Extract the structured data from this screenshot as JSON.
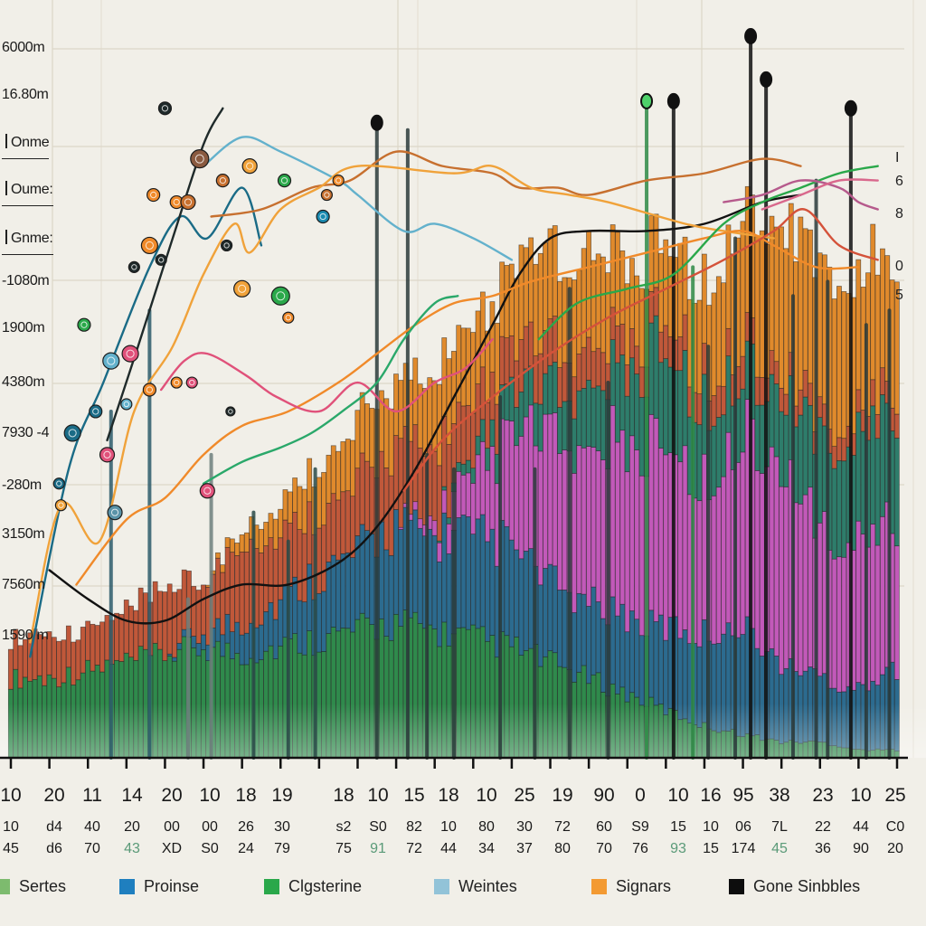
{
  "chart_data": {
    "type": "bar",
    "title": "",
    "xlabel": "",
    "ylabel": "",
    "grid": true,
    "legend_position": "bottom",
    "y_tick_labels": [
      "6000m",
      "16.80m",
      "Onme",
      "Oume:",
      "Gnme:",
      "-1080m",
      "1900m",
      "4380m",
      "7930 -4",
      "-280m",
      "3150m",
      "7560m",
      "1590 m"
    ],
    "x_tick_labels_row1": [
      "10",
      "20",
      "11",
      "14",
      "20",
      "10",
      "18",
      "19",
      "18",
      "10",
      "15",
      "18",
      "10",
      "25",
      "19",
      "90",
      "0",
      "10",
      "16",
      "95",
      "38",
      "23",
      "10",
      "25"
    ],
    "x_tick_labels_row2": [
      "10",
      "d4",
      "40",
      "20",
      "00",
      "00",
      "26",
      "30",
      "s2",
      "S0",
      "82",
      "10",
      "80",
      "30",
      "72",
      "60",
      "S9",
      "15",
      "10",
      "06",
      "7L",
      "22",
      "44",
      "C0"
    ],
    "x_tick_labels_row3": [
      "45",
      "d6",
      "70",
      "43",
      "XD",
      "S0",
      "24",
      "79",
      "75",
      "91",
      "72",
      "44",
      "34",
      "37",
      "80",
      "70",
      "76",
      "93",
      "15",
      "174",
      "45",
      "36",
      "90",
      "20"
    ],
    "right_end_labels": [
      "I",
      "6",
      "8",
      "0",
      "5"
    ],
    "legend": [
      {
        "label": "Sertes",
        "color": "#7dbb6e"
      },
      {
        "label": "Proinse",
        "color": "#1f7fbf"
      },
      {
        "label": "Clgsterine",
        "color": "#2aa84a"
      },
      {
        "label": "Weintes",
        "color": "#92c3d8"
      },
      {
        "label": "Signars",
        "color": "#f39a32"
      },
      {
        "label": "Gone Sinbbles",
        "color": "#0d0d0d"
      }
    ],
    "ylim": [
      0,
      100
    ],
    "stacked_area_layers": [
      {
        "name": "green-base",
        "color": "#2f8a4c",
        "values": [
          10,
          10,
          11,
          12,
          13,
          14,
          13,
          14,
          15,
          16,
          17,
          16,
          15,
          14,
          12,
          10,
          8,
          6,
          4,
          3,
          2,
          2,
          1,
          1
        ]
      },
      {
        "name": "blue",
        "color": "#2c6b8f",
        "values": [
          0,
          0,
          0,
          0,
          0,
          2,
          4,
          6,
          8,
          10,
          12,
          12,
          13,
          13,
          10,
          10,
          10,
          10,
          12,
          14,
          10,
          8,
          8,
          10
        ]
      },
      {
        "name": "magenta",
        "color": "#c259b9",
        "values": [
          0,
          0,
          0,
          0,
          0,
          0,
          0,
          0,
          0,
          0,
          0,
          2,
          7,
          14,
          18,
          20,
          22,
          24,
          20,
          24,
          26,
          18,
          20,
          18
        ]
      },
      {
        "name": "teal",
        "color": "#2e7d6b",
        "values": [
          0,
          0,
          0,
          0,
          0,
          0,
          0,
          0,
          0,
          0,
          0,
          0,
          2,
          5,
          6,
          8,
          10,
          12,
          10,
          8,
          10,
          12,
          14,
          14
        ]
      },
      {
        "name": "rust",
        "color": "#c0583a",
        "values": [
          5,
          6,
          5,
          7,
          8,
          7,
          10,
          9,
          8,
          9,
          10,
          10,
          7,
          6,
          6,
          5,
          4,
          4,
          4,
          4,
          3,
          3,
          3,
          3
        ]
      },
      {
        "name": "orange",
        "color": "#e08a2c",
        "values": [
          0,
          0,
          0,
          0,
          0,
          0,
          2,
          4,
          6,
          8,
          8,
          10,
          10,
          10,
          12,
          12,
          10,
          10,
          12,
          16,
          20,
          20,
          18,
          16
        ]
      }
    ],
    "spikes": [
      {
        "x": 2.6,
        "top": 48,
        "color": "#2b5a6a"
      },
      {
        "x": 3.6,
        "top": 62,
        "color": "#2b5a6a"
      },
      {
        "x": 4.6,
        "top": 22,
        "color": "#6d7f7d"
      },
      {
        "x": 5.2,
        "top": 42,
        "color": "#6d7f7d"
      },
      {
        "x": 6.3,
        "top": 34,
        "color": "#2a4a48"
      },
      {
        "x": 7.2,
        "top": 30,
        "color": "#2a4a48"
      },
      {
        "x": 7.9,
        "top": 40,
        "color": "#2a4a48"
      },
      {
        "x": 9.5,
        "top": 88,
        "color": "#2a3a3a"
      },
      {
        "x": 10.3,
        "top": 87,
        "color": "#2a3a3a"
      },
      {
        "x": 10.8,
        "top": 42,
        "color": "#2a3a3a"
      },
      {
        "x": 11.5,
        "top": 40,
        "color": "#2a3a3a"
      },
      {
        "x": 12.7,
        "top": 50,
        "color": "#2a3a3a"
      },
      {
        "x": 13.6,
        "top": 40,
        "color": "#2a3a3a"
      },
      {
        "x": 14.5,
        "top": 65,
        "color": "#2a3a3a"
      },
      {
        "x": 15.5,
        "top": 52,
        "color": "#2a3a3a"
      },
      {
        "x": 16.5,
        "top": 91,
        "color": "#2e8a45"
      },
      {
        "x": 17.2,
        "top": 91,
        "color": "#111111"
      },
      {
        "x": 17.7,
        "top": 68,
        "color": "#2e8a45"
      },
      {
        "x": 18.1,
        "top": 57,
        "color": "#2a3a3a"
      },
      {
        "x": 18.8,
        "top": 72,
        "color": "#2a3a3a"
      },
      {
        "x": 19.2,
        "top": 100,
        "color": "#111111"
      },
      {
        "x": 19.6,
        "top": 94,
        "color": "#111111"
      },
      {
        "x": 20.3,
        "top": 64,
        "color": "#2a3a3a"
      },
      {
        "x": 20.9,
        "top": 80,
        "color": "#2a3a3a"
      },
      {
        "x": 21.2,
        "top": 66,
        "color": "#2a3a3a"
      },
      {
        "x": 21.8,
        "top": 90,
        "color": "#111111"
      },
      {
        "x": 22.2,
        "top": 60,
        "color": "#2a3a3a"
      },
      {
        "x": 22.8,
        "top": 62,
        "color": "#2a3a3a"
      }
    ],
    "series": [
      {
        "name": "teal-blue",
        "color": "#1a6b86",
        "points": [
          [
            0.5,
            14
          ],
          [
            1.5,
            40
          ],
          [
            2.4,
            52
          ],
          [
            3.6,
            68
          ],
          [
            4.4,
            75
          ],
          [
            5.1,
            72
          ],
          [
            6.0,
            79
          ],
          [
            6.5,
            71
          ]
        ]
      },
      {
        "name": "dark",
        "color": "#1f2a2a",
        "points": [
          [
            2.5,
            44
          ],
          [
            3.3,
            57
          ],
          [
            4.2,
            72
          ],
          [
            5.0,
            85
          ],
          [
            5.5,
            90
          ]
        ]
      },
      {
        "name": "light-blue",
        "color": "#63b1cc",
        "points": [
          [
            5.0,
            82
          ],
          [
            6.0,
            86
          ],
          [
            7.0,
            84
          ],
          [
            8.5,
            80
          ],
          [
            9.0,
            78
          ],
          [
            10.2,
            73
          ],
          [
            11.0,
            74
          ],
          [
            12.0,
            72
          ],
          [
            13.0,
            69
          ]
        ]
      },
      {
        "name": "copper",
        "color": "#c7702f",
        "points": [
          [
            5.2,
            75
          ],
          [
            6.5,
            76
          ],
          [
            7.8,
            79
          ],
          [
            8.8,
            80
          ],
          [
            10.0,
            84
          ],
          [
            11.2,
            82
          ],
          [
            12.5,
            81
          ],
          [
            13.2,
            79
          ],
          [
            14.2,
            79
          ],
          [
            15.0,
            78
          ],
          [
            16.5,
            80
          ],
          [
            18.0,
            81
          ],
          [
            19.5,
            83
          ],
          [
            20.5,
            82
          ]
        ]
      },
      {
        "name": "black-curve",
        "color": "#111111",
        "points": [
          [
            1.0,
            26
          ],
          [
            2.0,
            22
          ],
          [
            3.0,
            19
          ],
          [
            4.0,
            19
          ],
          [
            5.0,
            22
          ],
          [
            6.0,
            24
          ],
          [
            7.2,
            24
          ],
          [
            8.5,
            27
          ],
          [
            9.5,
            32
          ],
          [
            10.5,
            40
          ],
          [
            11.5,
            50
          ],
          [
            12.5,
            60
          ],
          [
            13.2,
            67
          ],
          [
            14.0,
            72
          ],
          [
            15.0,
            73
          ],
          [
            16.5,
            73
          ],
          [
            18.0,
            74
          ],
          [
            19.5,
            77
          ],
          [
            20.5,
            78
          ]
        ]
      },
      {
        "name": "orange-a",
        "color": "#f0a23a",
        "points": [
          [
            0.5,
            16
          ],
          [
            1.3,
            35
          ],
          [
            2.3,
            30
          ],
          [
            3.2,
            48
          ],
          [
            4.2,
            57
          ],
          [
            5.0,
            67
          ],
          [
            5.8,
            74
          ],
          [
            6.2,
            70
          ],
          [
            7.0,
            76
          ],
          [
            8.0,
            79
          ],
          [
            9.0,
            82
          ],
          [
            11.5,
            81
          ],
          [
            12.5,
            82
          ],
          [
            13.5,
            79
          ],
          [
            14.5,
            78
          ],
          [
            15.5,
            77
          ],
          [
            17.5,
            74
          ],
          [
            18.5,
            73
          ],
          [
            19.8,
            72
          ]
        ]
      },
      {
        "name": "orange-b",
        "color": "#f08a2a",
        "points": [
          [
            1.7,
            24
          ],
          [
            3.0,
            33
          ],
          [
            4.0,
            36
          ],
          [
            5.0,
            42
          ],
          [
            6.0,
            46
          ],
          [
            7.2,
            48
          ],
          [
            8.5,
            52
          ],
          [
            9.5,
            56
          ],
          [
            10.5,
            60
          ],
          [
            11.5,
            63
          ],
          [
            12.5,
            64
          ],
          [
            13.5,
            66
          ],
          [
            15.0,
            68
          ],
          [
            16.5,
            70
          ],
          [
            18.0,
            72
          ],
          [
            19.0,
            73
          ],
          [
            19.8,
            71
          ],
          [
            20.9,
            68
          ],
          [
            22.0,
            68
          ]
        ]
      },
      {
        "name": "pink-red",
        "color": "#e0517a",
        "points": [
          [
            3.9,
            51
          ],
          [
            4.5,
            55
          ],
          [
            5.1,
            56
          ],
          [
            6.1,
            53
          ],
          [
            6.9,
            50
          ],
          [
            8.0,
            48
          ],
          [
            9.0,
            52
          ],
          [
            10.0,
            48
          ],
          [
            11.0,
            52
          ],
          [
            11.8,
            54
          ],
          [
            12.5,
            58
          ]
        ]
      },
      {
        "name": "green-teal",
        "color": "#2aa86a",
        "points": [
          [
            5.0,
            38
          ],
          [
            6.0,
            41
          ],
          [
            7.0,
            43
          ],
          [
            7.8,
            45
          ],
          [
            8.6,
            48
          ],
          [
            9.5,
            52
          ],
          [
            10.2,
            58
          ],
          [
            11.0,
            63
          ],
          [
            11.6,
            64
          ]
        ]
      },
      {
        "name": "red-orange",
        "color": "#d4523a",
        "points": [
          [
            10.2,
            37
          ],
          [
            11.2,
            44
          ],
          [
            12.5,
            50
          ],
          [
            14.0,
            56
          ],
          [
            15.5,
            61
          ],
          [
            17.0,
            65
          ],
          [
            18.5,
            69
          ],
          [
            19.8,
            73
          ],
          [
            20.6,
            76
          ],
          [
            21.5,
            71
          ],
          [
            22.5,
            69
          ]
        ]
      },
      {
        "name": "green-top",
        "color": "#2aa84a",
        "points": [
          [
            13.7,
            58
          ],
          [
            14.7,
            63
          ],
          [
            16.0,
            65
          ],
          [
            17.2,
            67
          ],
          [
            18.5,
            74
          ],
          [
            19.5,
            77
          ],
          [
            20.5,
            79
          ],
          [
            21.5,
            81
          ],
          [
            22.5,
            82
          ]
        ]
      },
      {
        "name": "magenta-line",
        "color": "#b65a8c",
        "points": [
          [
            18.5,
            77
          ],
          [
            19.5,
            78
          ],
          [
            20.5,
            80
          ],
          [
            21.5,
            79
          ],
          [
            22.0,
            77
          ],
          [
            22.5,
            76
          ]
        ]
      },
      {
        "name": "pink-line",
        "color": "#d9688c",
        "points": [
          [
            19.5,
            76
          ],
          [
            20.5,
            78
          ],
          [
            21.5,
            80
          ],
          [
            22.5,
            80
          ]
        ]
      }
    ],
    "markers": [
      {
        "x": 1.6,
        "y": 45,
        "color": "#1a6b86",
        "r": 9
      },
      {
        "x": 1.25,
        "y": 38,
        "color": "#1a6b86",
        "r": 6
      },
      {
        "x": 1.9,
        "y": 60,
        "color": "#2aa84a",
        "r": 7
      },
      {
        "x": 1.3,
        "y": 35,
        "color": "#f0a23a",
        "r": 6
      },
      {
        "x": 2.2,
        "y": 48,
        "color": "#1a6b86",
        "r": 7
      },
      {
        "x": 2.6,
        "y": 55,
        "color": "#63b1cc",
        "r": 9
      },
      {
        "x": 2.5,
        "y": 42,
        "color": "#e0517a",
        "r": 8
      },
      {
        "x": 3.1,
        "y": 56,
        "color": "#e0517a",
        "r": 9
      },
      {
        "x": 2.7,
        "y": 34,
        "color": "#5a93a8",
        "r": 8
      },
      {
        "x": 3.6,
        "y": 51,
        "color": "#f08a2a",
        "r": 7
      },
      {
        "x": 3.0,
        "y": 49,
        "color": "#63b1cc",
        "r": 6
      },
      {
        "x": 3.2,
        "y": 68,
        "color": "#1f2a2a",
        "r": 6
      },
      {
        "x": 3.7,
        "y": 78,
        "color": "#f08a2a",
        "r": 7
      },
      {
        "x": 3.6,
        "y": 71,
        "color": "#f08a2a",
        "r": 9
      },
      {
        "x": 3.9,
        "y": 69,
        "color": "#1f2a2a",
        "r": 6
      },
      {
        "x": 4.0,
        "y": 90,
        "color": "#1f2a2a",
        "r": 7
      },
      {
        "x": 4.9,
        "y": 83,
        "color": "#8a5a40",
        "r": 10
      },
      {
        "x": 4.3,
        "y": 77,
        "color": "#f08a2a",
        "r": 7
      },
      {
        "x": 4.6,
        "y": 77,
        "color": "#c7702f",
        "r": 8
      },
      {
        "x": 5.6,
        "y": 71,
        "color": "#1f2a2a",
        "r": 6
      },
      {
        "x": 5.5,
        "y": 80,
        "color": "#c7702f",
        "r": 7
      },
      {
        "x": 6.2,
        "y": 82,
        "color": "#f0a23a",
        "r": 8
      },
      {
        "x": 6.0,
        "y": 65,
        "color": "#f0a23a",
        "r": 9
      },
      {
        "x": 7.0,
        "y": 64,
        "color": "#2aa84a",
        "r": 10
      },
      {
        "x": 7.1,
        "y": 80,
        "color": "#2aa84a",
        "r": 7
      },
      {
        "x": 7.2,
        "y": 61,
        "color": "#f08a2a",
        "r": 6
      },
      {
        "x": 4.7,
        "y": 52,
        "color": "#e0517a",
        "r": 6
      },
      {
        "x": 5.1,
        "y": 37,
        "color": "#e0517a",
        "r": 8
      },
      {
        "x": 5.7,
        "y": 48,
        "color": "#1f2a2a",
        "r": 5
      },
      {
        "x": 4.3,
        "y": 52,
        "color": "#f08a2a",
        "r": 6
      },
      {
        "x": 8.1,
        "y": 75,
        "color": "#1a8ab0",
        "r": 7
      },
      {
        "x": 8.2,
        "y": 78,
        "color": "#c7702f",
        "r": 6
      },
      {
        "x": 8.5,
        "y": 80,
        "color": "#f08a2a",
        "r": 6
      }
    ]
  }
}
